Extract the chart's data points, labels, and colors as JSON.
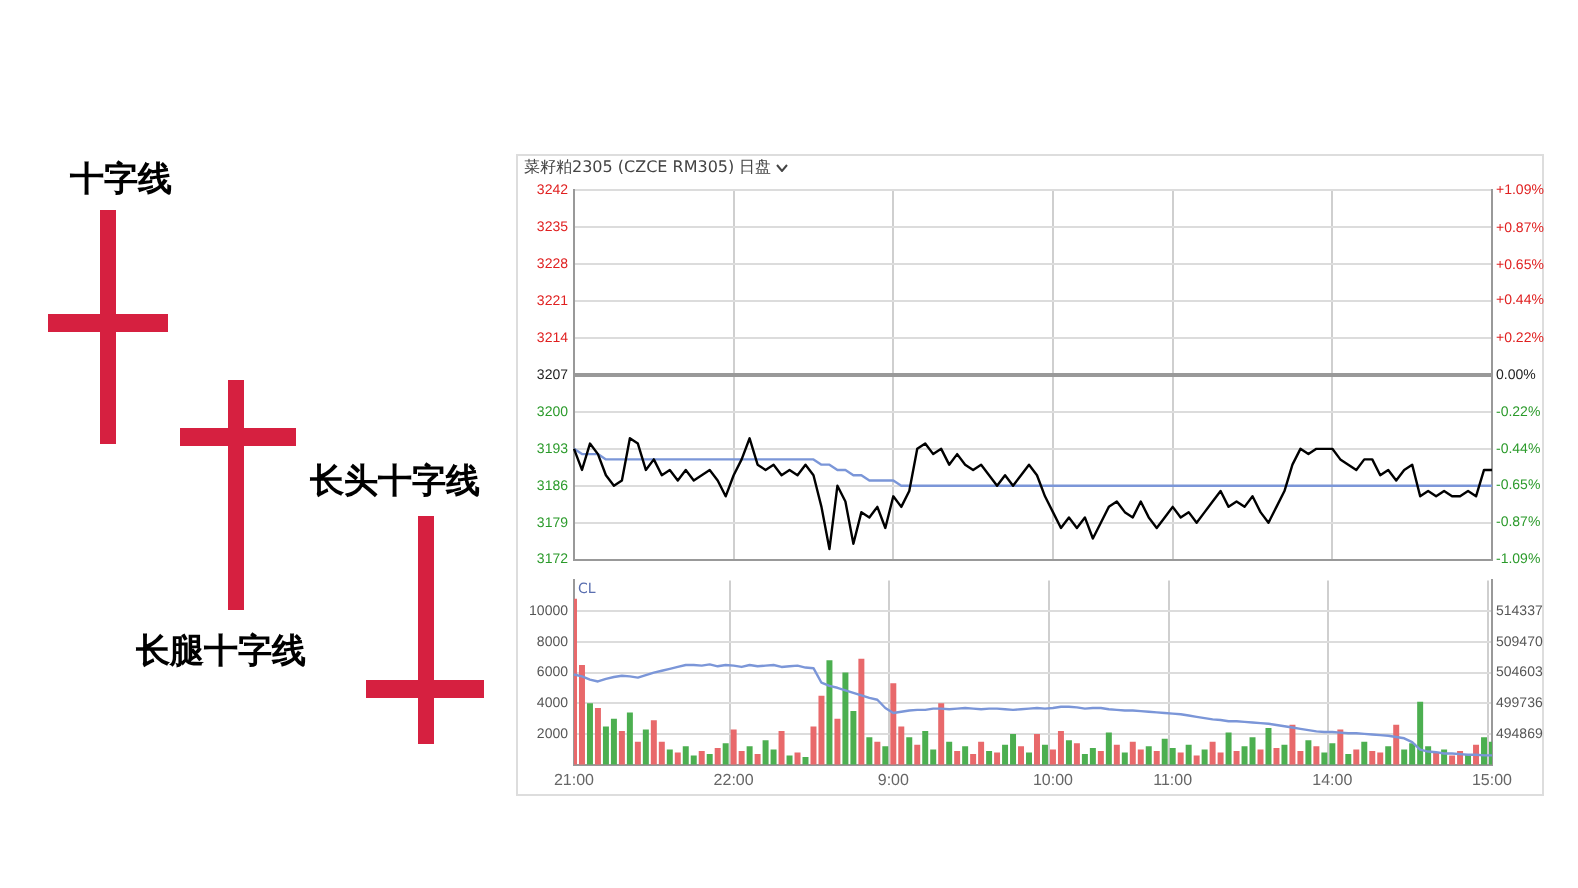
{
  "chart_data": [
    {
      "type": "other",
      "annotations": [
        "十字线",
        "长头十字线",
        "长腿十字线"
      ]
    },
    {
      "type": "line",
      "title": "菜籽粕2305 (CZCE RM305)",
      "subtitle": "日盘",
      "categories": [
        null,
        null,
        null,
        null,
        null,
        null,
        null,
        null,
        null,
        null,
        null,
        null,
        null,
        null,
        null,
        null,
        null,
        null,
        null,
        null,
        null,
        null,
        null,
        null,
        null,
        null,
        null,
        null,
        null,
        null,
        null,
        null,
        null,
        null,
        null,
        null,
        null,
        null,
        null,
        null,
        null,
        null,
        null,
        null,
        null,
        null,
        null,
        null,
        null,
        null,
        null,
        null,
        null,
        null,
        null,
        null,
        null,
        null,
        null,
        null,
        null,
        null,
        null,
        null,
        null,
        null,
        null,
        null,
        null,
        null,
        null,
        null,
        null,
        null,
        null,
        null,
        null,
        null,
        null,
        null,
        null,
        null,
        null,
        null,
        null,
        null,
        null,
        null,
        null,
        null,
        null,
        null,
        null,
        null,
        null,
        null,
        null,
        null,
        null,
        null,
        null,
        null,
        null,
        null,
        null,
        null,
        null,
        null,
        null,
        null,
        null,
        null,
        null,
        null,
        null,
        null
      ],
      "series": [
        {
          "color": "#000000",
          "values": [
            3193,
            3189,
            3194,
            3192,
            3188,
            3186,
            3187,
            3195,
            3194,
            3189,
            3191,
            3188,
            3189,
            3187,
            3189,
            3187,
            3188,
            3189,
            3187,
            3184,
            3188,
            3191,
            3195,
            3190,
            3189,
            3190,
            3188,
            3189,
            3188,
            3190,
            3188,
            3182,
            3174,
            3186,
            3183,
            3175,
            3181,
            3180,
            3182,
            3178,
            3184,
            3182,
            3185,
            3193,
            3194,
            3192,
            3193,
            3190,
            3192,
            3190,
            3189,
            3190,
            3188,
            3186,
            3188,
            3186,
            3188,
            3190,
            3188,
            3184,
            3181,
            3178,
            3180,
            3178,
            3180,
            3176,
            3179,
            3182,
            3183,
            3181,
            3180,
            3183,
            3180,
            3178,
            3180,
            3182,
            3180,
            3181,
            3179,
            3181,
            3183,
            3185,
            3182,
            3183,
            3182,
            3184,
            3181,
            3179,
            3182,
            3185,
            3190,
            3193,
            3192,
            3193,
            3193,
            3193,
            3191,
            3190,
            3189,
            3191,
            3191,
            3188,
            3189,
            3187,
            3189,
            3190,
            3184,
            3185,
            3184,
            3185,
            3184,
            3184,
            3185,
            3184,
            3189,
            3189
          ]
        },
        {
          "color": "#7b96d8",
          "values": [
            3193,
            3192,
            3192,
            3192,
            3191,
            3191,
            3191,
            3191,
            3191,
            3191,
            3191,
            3191,
            3191,
            3191,
            3191,
            3191,
            3191,
            3191,
            3191,
            3191,
            3191,
            3191,
            3191,
            3191,
            3191,
            3191,
            3191,
            3191,
            3191,
            3191,
            3191,
            3190,
            3190,
            3189,
            3189,
            3188,
            3188,
            3187,
            3187,
            3187,
            3187,
            3186,
            3186,
            3186,
            3186,
            3186,
            3186,
            3186,
            3186,
            3186,
            3186,
            3186,
            3186,
            3186,
            3186,
            3186,
            3186,
            3186,
            3186,
            3186,
            3186,
            3186,
            3186,
            3186,
            3186,
            3186,
            3186,
            3186,
            3186,
            3186,
            3186,
            3186,
            3186,
            3186,
            3186,
            3186,
            3186,
            3186,
            3186,
            3186,
            3186,
            3186,
            3186,
            3186,
            3186,
            3186,
            3186,
            3186,
            3186,
            3186,
            3186,
            3186,
            3186,
            3186,
            3186,
            3186,
            3186,
            3186,
            3186,
            3186,
            3186,
            3186,
            3186,
            3186,
            3186,
            3186,
            3186,
            3186,
            3186,
            3186,
            3186,
            3186,
            3186,
            3186,
            3186,
            3186
          ]
        }
      ],
      "ylim": [
        3172,
        3242
      ],
      "yticks": [
        3172,
        3179,
        3186,
        3193,
        3200,
        3207,
        3214,
        3221,
        3228,
        3235,
        3242
      ],
      "y2lim": [
        -1.09,
        1.09
      ],
      "y2ticks": [
        {
          "value": -1.09,
          "label": "-1.09%"
        },
        {
          "value": -0.87,
          "label": "-0.87%"
        },
        {
          "value": -0.65,
          "label": "-0.65%"
        },
        {
          "value": -0.44,
          "label": "-0.44%"
        },
        {
          "value": -0.22,
          "label": "-0.22%"
        },
        {
          "value": 0,
          "label": "0.00%"
        },
        {
          "value": 0.22,
          "label": "+0.22%"
        },
        {
          "value": 0.44,
          "label": "+0.44%"
        },
        {
          "value": 0.65,
          "label": "+0.65%"
        },
        {
          "value": 0.87,
          "label": "+0.87%"
        },
        {
          "value": 1.09,
          "label": "+1.09%"
        }
      ],
      "grid": true,
      "tick_labels": "y",
      "marker": "none",
      "legend": false
    },
    {
      "type": "bar",
      "annotations": [
        "CL"
      ],
      "categories": [
        "21:00",
        null,
        null,
        null,
        null,
        null,
        null,
        null,
        null,
        null,
        null,
        null,
        null,
        null,
        null,
        null,
        null,
        null,
        null,
        null,
        "22:00",
        null,
        null,
        null,
        null,
        null,
        null,
        null,
        null,
        null,
        null,
        null,
        null,
        null,
        null,
        null,
        null,
        null,
        null,
        null,
        "9:00",
        null,
        null,
        null,
        null,
        null,
        null,
        null,
        null,
        null,
        null,
        null,
        null,
        null,
        null,
        null,
        null,
        null,
        null,
        null,
        "10:00",
        null,
        null,
        null,
        null,
        null,
        null,
        null,
        null,
        null,
        null,
        null,
        null,
        null,
        null,
        "11:00",
        null,
        null,
        null,
        null,
        null,
        null,
        null,
        null,
        null,
        null,
        null,
        null,
        null,
        null,
        null,
        null,
        null,
        null,
        null,
        "14:00",
        null,
        null,
        null,
        null,
        null,
        null,
        null,
        null,
        null,
        null,
        null,
        null,
        null,
        null,
        null,
        null,
        null,
        null,
        null,
        "15:00"
      ],
      "series": [
        {
          "type": "bar",
          "colors": [
            "#e8696b",
            "#e8696b",
            "#4caf50",
            "#e8696b",
            "#4caf50",
            "#4caf50",
            "#e8696b",
            "#4caf50",
            "#e8696b",
            "#4caf50",
            "#e8696b",
            "#e8696b",
            "#4caf50",
            "#e8696b",
            "#4caf50",
            "#4caf50",
            "#e8696b",
            "#4caf50",
            "#e8696b",
            "#4caf50",
            "#e8696b",
            "#e8696b",
            "#4caf50",
            "#e8696b",
            "#4caf50",
            "#4caf50",
            "#e8696b",
            "#4caf50",
            "#e8696b",
            "#4caf50",
            "#e8696b",
            "#e8696b",
            "#4caf50",
            "#e8696b",
            "#4caf50",
            "#4caf50",
            "#e8696b",
            "#4caf50",
            "#e8696b",
            "#4caf50",
            "#e8696b",
            "#e8696b",
            "#4caf50",
            "#e8696b",
            "#4caf50",
            "#4caf50",
            "#e8696b",
            "#4caf50",
            "#e8696b",
            "#4caf50",
            "#e8696b",
            "#e8696b",
            "#4caf50",
            "#e8696b",
            "#4caf50",
            "#4caf50",
            "#e8696b",
            "#4caf50",
            "#e8696b",
            "#4caf50",
            "#e8696b",
            "#e8696b",
            "#4caf50",
            "#e8696b",
            "#4caf50",
            "#4caf50",
            "#e8696b",
            "#4caf50",
            "#e8696b",
            "#4caf50",
            "#e8696b",
            "#e8696b",
            "#4caf50",
            "#e8696b",
            "#4caf50",
            "#4caf50",
            "#e8696b",
            "#4caf50",
            "#e8696b",
            "#4caf50",
            "#e8696b",
            "#e8696b",
            "#4caf50",
            "#e8696b",
            "#4caf50",
            "#4caf50",
            "#e8696b",
            "#4caf50",
            "#e8696b",
            "#4caf50",
            "#e8696b",
            "#e8696b",
            "#4caf50",
            "#e8696b",
            "#4caf50",
            "#4caf50",
            "#e8696b",
            "#4caf50",
            "#e8696b",
            "#4caf50",
            "#e8696b",
            "#e8696b",
            "#4caf50",
            "#e8696b",
            "#4caf50",
            "#4caf50",
            "#4caf50",
            "#4caf50",
            "#e8696b",
            "#4caf50",
            "#e8696b",
            "#e8696b",
            "#4caf50",
            "#e8696b",
            "#4caf50",
            "#4caf50"
          ],
          "values": [
            10800,
            6500,
            4000,
            3700,
            2500,
            3000,
            2200,
            3400,
            1500,
            2300,
            2900,
            1500,
            1000,
            800,
            1200,
            600,
            900,
            700,
            1100,
            1400,
            2300,
            900,
            1200,
            700,
            1600,
            1000,
            2200,
            600,
            800,
            500,
            2500,
            4500,
            6800,
            3000,
            6000,
            3500,
            6900,
            1800,
            1500,
            1200,
            5300,
            2500,
            1800,
            1300,
            2200,
            1000,
            4000,
            1500,
            900,
            1200,
            700,
            1500,
            900,
            800,
            1300,
            2000,
            1200,
            800,
            2000,
            1300,
            1000,
            2200,
            1600,
            1400,
            700,
            1100,
            900,
            2100,
            1300,
            800,
            1500,
            1000,
            1200,
            900,
            1700,
            1100,
            800,
            1300,
            600,
            1000,
            1500,
            800,
            2100,
            900,
            1200,
            1800,
            1000,
            2400,
            1100,
            1300,
            2600,
            900,
            1600,
            1200,
            800,
            1400,
            2300,
            700,
            1000,
            1500,
            900,
            800,
            1200,
            2600,
            1000,
            1400,
            4100,
            1200,
            800,
            1000,
            600,
            900,
            700,
            1300,
            1800,
            1500
          ]
        },
        {
          "type": "line",
          "axis": "y2",
          "color": "#7b96d8",
          "values": [
            504300,
            504000,
            503500,
            503200,
            503600,
            503900,
            504100,
            504000,
            503800,
            504200,
            504600,
            504900,
            505200,
            505500,
            505800,
            505800,
            505700,
            505900,
            505600,
            505800,
            505700,
            505500,
            505800,
            505600,
            505700,
            505800,
            505500,
            505600,
            505700,
            505400,
            505300,
            503000,
            502500,
            502200,
            501800,
            501400,
            501000,
            500600,
            500300,
            499000,
            498200,
            498400,
            498600,
            498700,
            498700,
            498900,
            498900,
            498800,
            498900,
            499000,
            498900,
            498800,
            498900,
            498900,
            498800,
            498700,
            498800,
            498900,
            499000,
            498900,
            499000,
            499200,
            499200,
            499100,
            498900,
            499000,
            499000,
            498800,
            498700,
            498600,
            498600,
            498500,
            498400,
            498300,
            498200,
            498100,
            498000,
            497800,
            497600,
            497400,
            497200,
            497100,
            496900,
            496900,
            496800,
            496700,
            496600,
            496500,
            496300,
            496100,
            495900,
            495700,
            495500,
            495300,
            495200,
            495200,
            495100,
            495000,
            495000,
            494900,
            494800,
            494700,
            494600,
            494400,
            494200,
            493600,
            492400,
            492100,
            492000,
            491800,
            491800,
            491700,
            491600,
            491600,
            491500,
            491500
          ]
        }
      ],
      "ylim": [
        0,
        12000
      ],
      "yticks": [
        2000,
        4000,
        6000,
        8000,
        10000
      ],
      "y2lim": [
        490002,
        519204
      ],
      "y2ticks": [
        494869,
        499736,
        504603,
        509470,
        514337
      ],
      "grid": true,
      "marker": "none",
      "legend": false
    }
  ]
}
